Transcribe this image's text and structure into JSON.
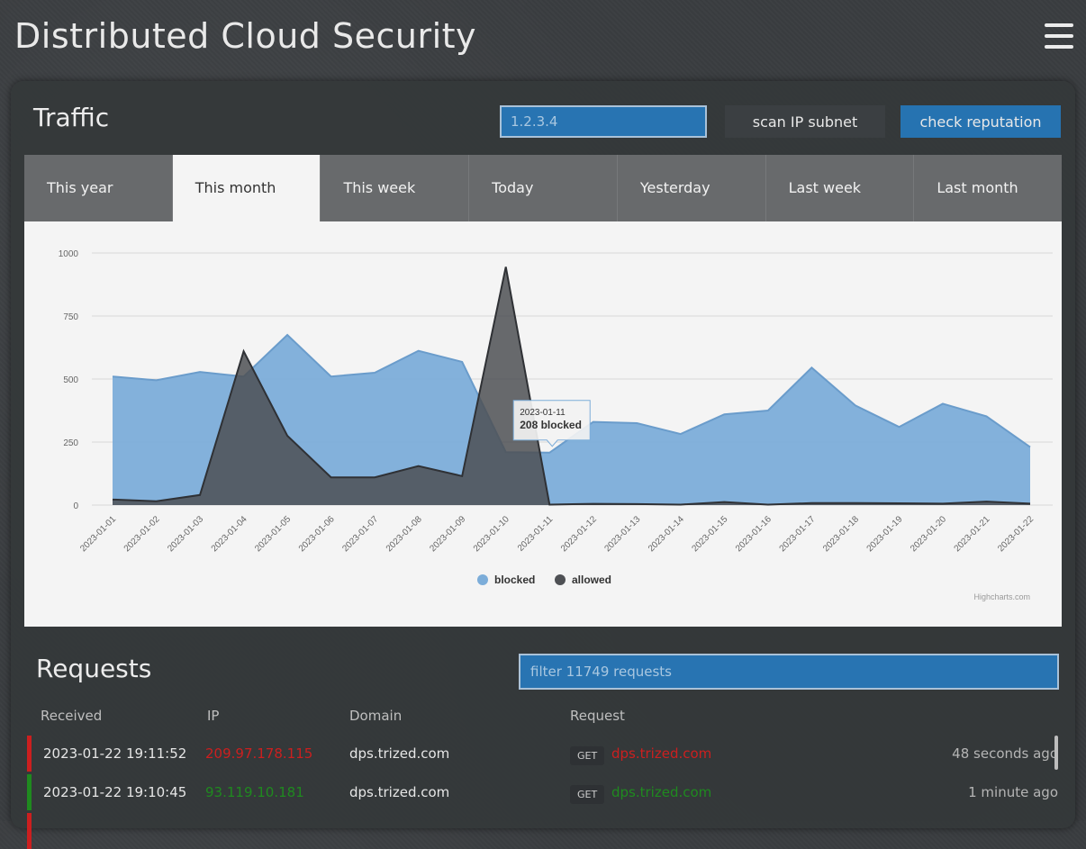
{
  "app_title": "Distributed Cloud Security",
  "traffic": {
    "title": "Traffic",
    "ip_placeholder": "1.2.3.4",
    "scan_label": "scan IP subnet",
    "check_label": "check reputation",
    "tabs": [
      "This year",
      "This month",
      "This week",
      "Today",
      "Yesterday",
      "Last week",
      "Last month"
    ],
    "active_tab": "This month"
  },
  "chart_data": {
    "type": "area",
    "x": [
      "2023-01-01",
      "2023-01-02",
      "2023-01-03",
      "2023-01-04",
      "2023-01-05",
      "2023-01-06",
      "2023-01-07",
      "2023-01-08",
      "2023-01-09",
      "2023-01-10",
      "2023-01-11",
      "2023-01-12",
      "2023-01-13",
      "2023-01-14",
      "2023-01-15",
      "2023-01-16",
      "2023-01-17",
      "2023-01-18",
      "2023-01-19",
      "2023-01-20",
      "2023-01-21",
      "2023-01-22"
    ],
    "series": [
      {
        "name": "blocked",
        "color": "#7cadd9",
        "line_color": "#6a9ccb",
        "values": [
          510,
          495,
          528,
          510,
          675,
          510,
          525,
          612,
          568,
          210,
          208,
          330,
          325,
          282,
          360,
          375,
          545,
          395,
          310,
          402,
          352,
          230
        ]
      },
      {
        "name": "allowed",
        "color": "#4e5054",
        "line_color": "#2f3135",
        "values": [
          22,
          15,
          40,
          610,
          275,
          110,
          110,
          155,
          115,
          945,
          2,
          5,
          4,
          2,
          12,
          2,
          8,
          8,
          7,
          6,
          14,
          6
        ]
      }
    ],
    "yticks": [
      0,
      250,
      500,
      750,
      1000
    ],
    "ylim": [
      0,
      1000
    ],
    "tooltip": {
      "date": "2023-01-11",
      "text": "208 blocked"
    },
    "credit": "Highcharts.com"
  },
  "requests": {
    "title": "Requests",
    "filter_placeholder": "filter 11749 requests",
    "columns": {
      "received": "Received",
      "ip": "IP",
      "domain": "Domain",
      "request": "Request"
    },
    "rows": [
      {
        "received": "2023-01-22 19:11:52",
        "ip": "209.97.178.115",
        "domain": "dps.trized.com",
        "method": "GET",
        "url": "dps.trized.com",
        "ago": "48 seconds ago",
        "status_color": "#cc1f1f"
      },
      {
        "received": "2023-01-22 19:10:45",
        "ip": "93.119.10.181",
        "domain": "dps.trized.com",
        "method": "GET",
        "url": "dps.trized.com",
        "ago": "1 minute ago",
        "status_color": "#1f8a1f"
      }
    ]
  }
}
